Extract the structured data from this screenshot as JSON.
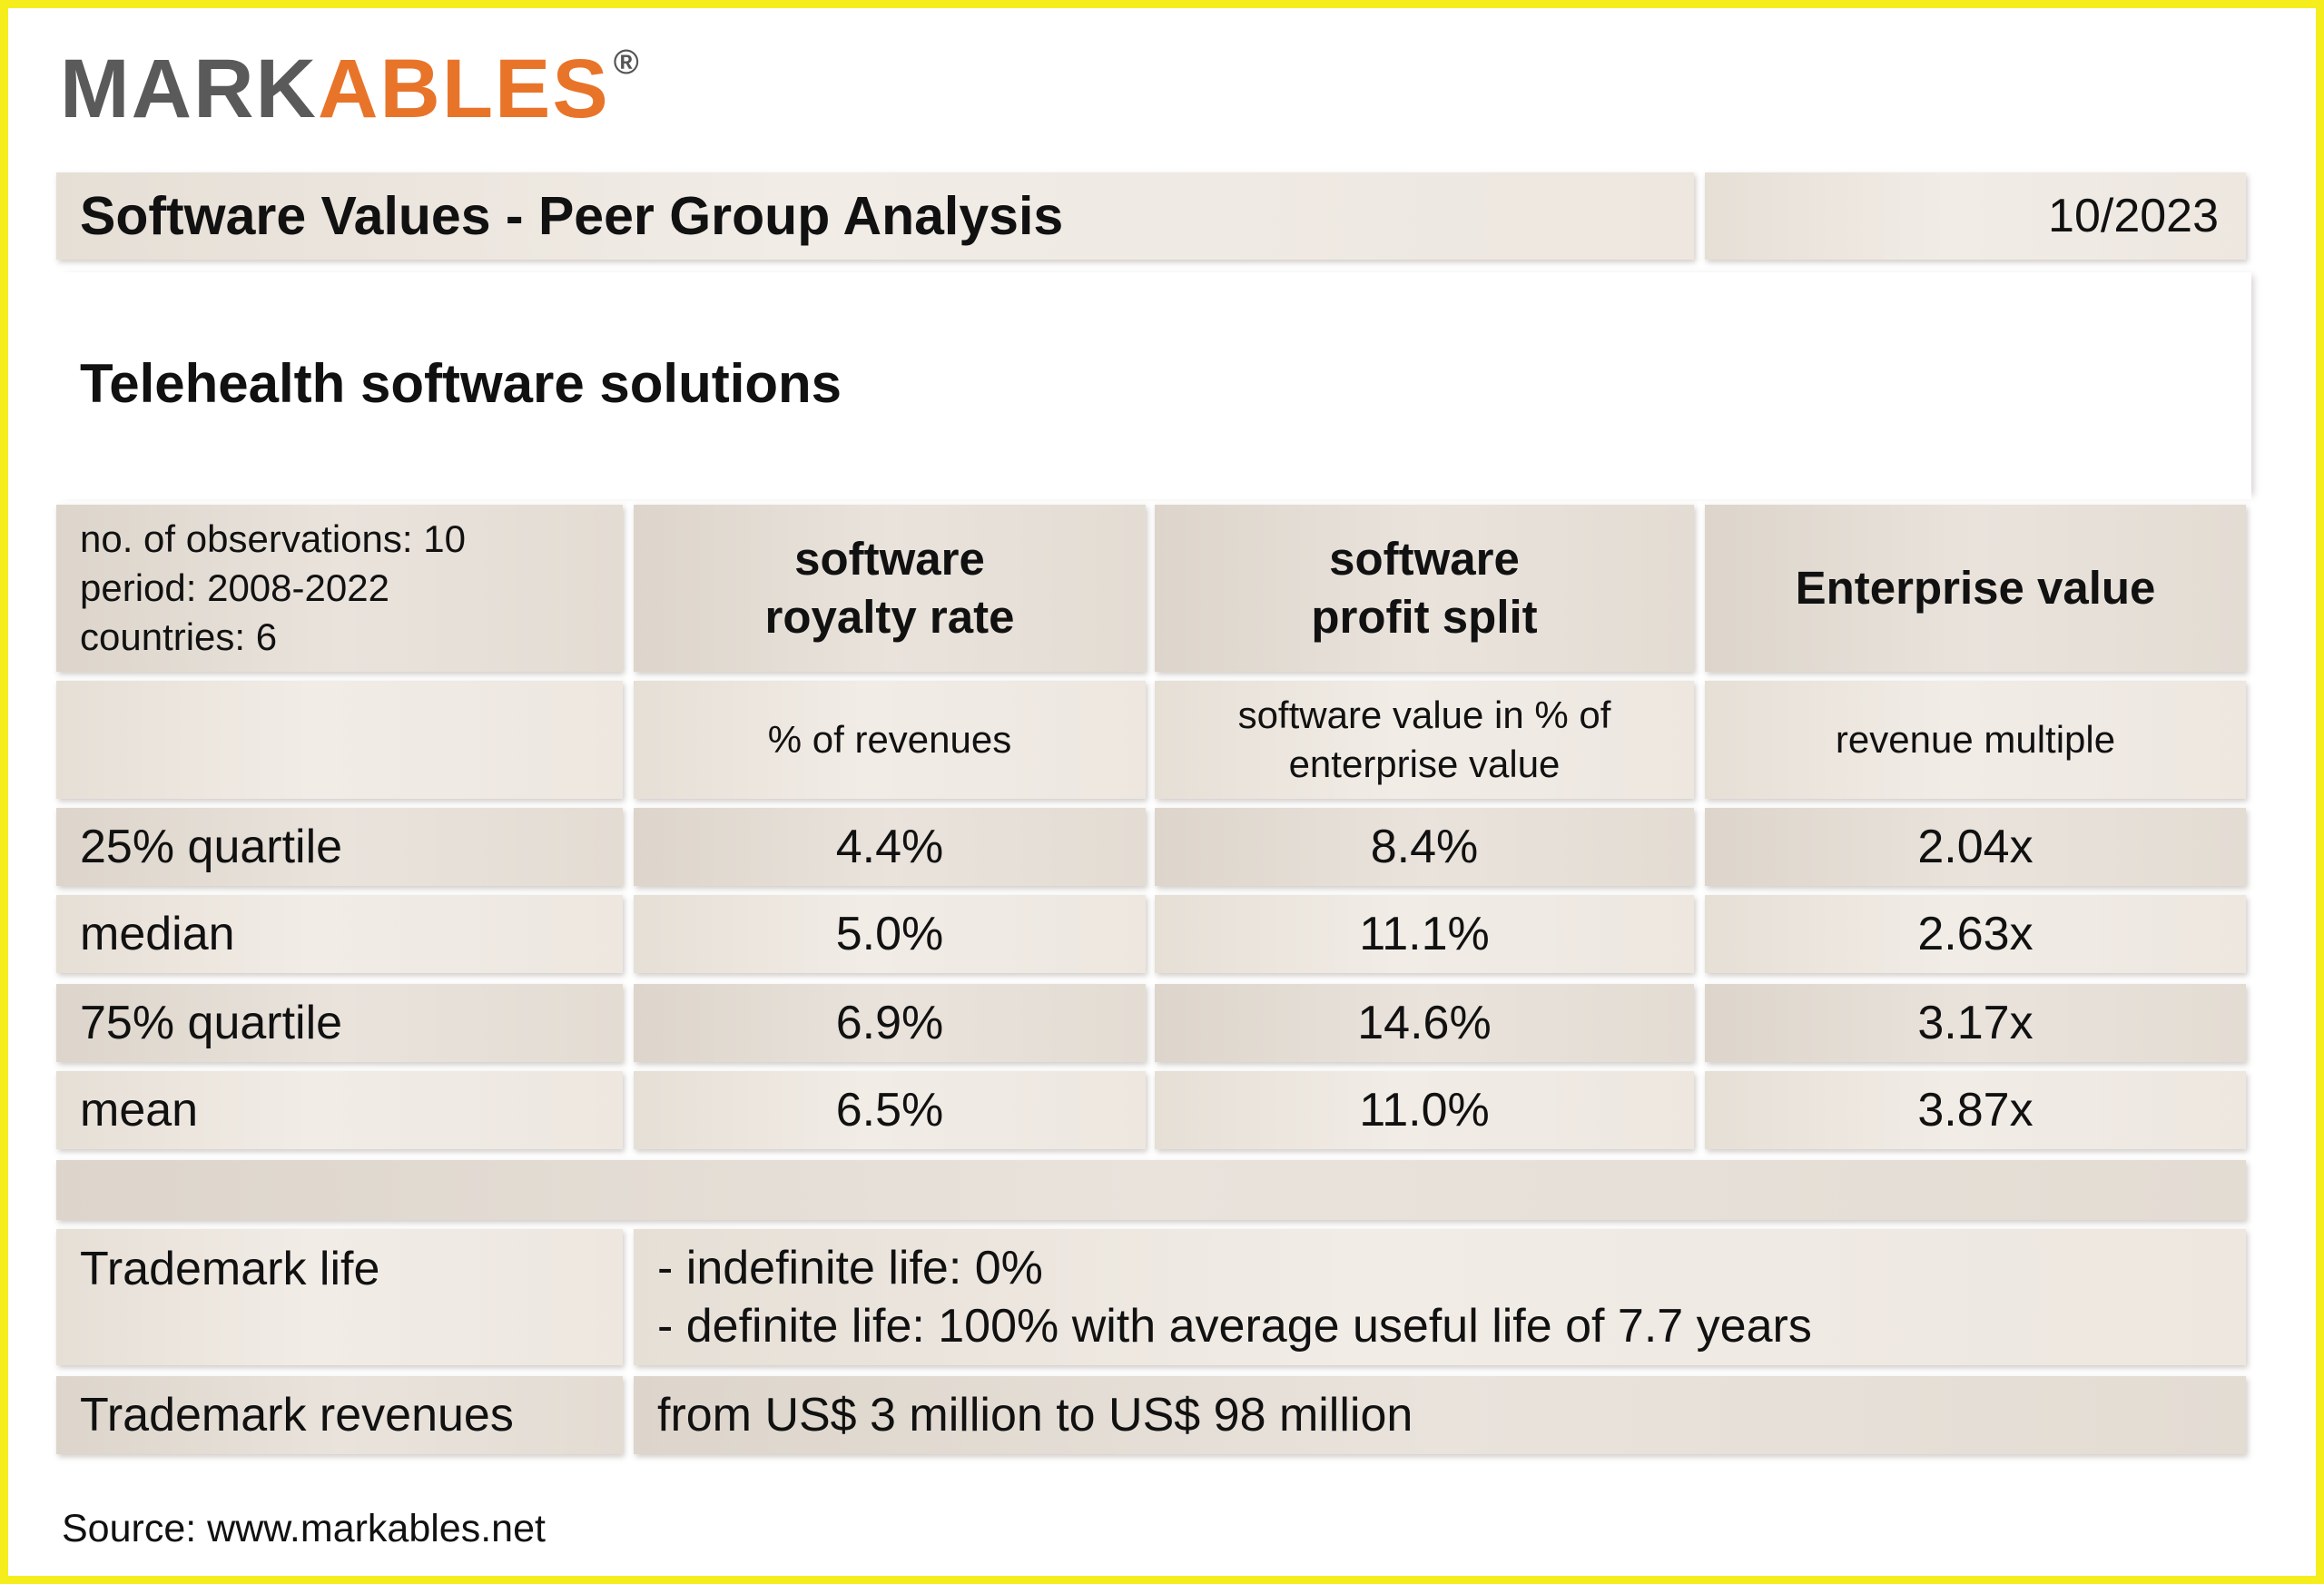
{
  "logo": {
    "part1": "MARK",
    "part2": "ABLES",
    "registered": "®"
  },
  "header": {
    "title": "Software Values - Peer Group Analysis",
    "date": "10/2023"
  },
  "subtitle": "Telehealth software solutions",
  "meta": {
    "observations": "no. of observations: 10",
    "period": "period: 2008-2022",
    "countries": "countries: 6"
  },
  "columns": [
    {
      "title_line1": "software",
      "title_line2": "royalty rate",
      "unit_line1": "% of revenues",
      "unit_line2": ""
    },
    {
      "title_line1": "software",
      "title_line2": "profit split",
      "unit_line1": "software value in % of",
      "unit_line2": "enterprise value"
    },
    {
      "title_line1": "Enterprise value",
      "title_line2": "",
      "unit_line1": "revenue multiple",
      "unit_line2": ""
    }
  ],
  "rows": [
    {
      "label": "25% quartile",
      "values": [
        "4.4%",
        "8.4%",
        "2.04x"
      ]
    },
    {
      "label": "median",
      "values": [
        "5.0%",
        "11.1%",
        "2.63x"
      ]
    },
    {
      "label": "75% quartile",
      "values": [
        "6.9%",
        "14.6%",
        "3.17x"
      ]
    },
    {
      "label": "mean",
      "values": [
        "6.5%",
        "11.0%",
        "3.87x"
      ]
    }
  ],
  "trademark_life": {
    "label": "Trademark life",
    "line1": "- indefinite life: 0%",
    "line2": "- definite life: 100% with average useful life of 7.7 years"
  },
  "trademark_revenues": {
    "label": "Trademark revenues",
    "value": "from US$ 3 million to US$ 98 million"
  },
  "source": "Source: www.markables.net"
}
